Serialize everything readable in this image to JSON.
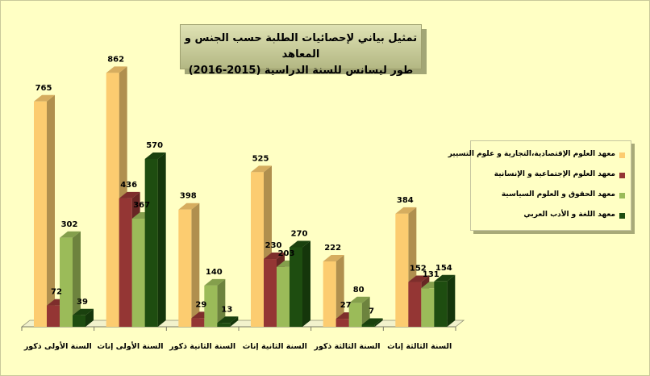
{
  "chart_data": {
    "type": "bar",
    "title": "تمثيل بياني لإحصائيات الطلبة حسب الجنس و المعاهد طور ليسانس للسنة الدراسية (2015-2016)",
    "title_lines": [
      "تمثيل بياني لإحصائيات الطلبة حسب الجنس و المعاهد",
      "طور ليسانس للسنة الدراسية (2015-2016)"
    ],
    "categories": [
      "السنة الأولى ذكور",
      "السنة الأولى إناث",
      "السنة الثانية ذكور",
      "السنة الثانية إناث",
      "السنة الثالثة ذكور",
      "السنة الثالثة إناث"
    ],
    "series": [
      {
        "name": "معهد العلوم الإقتصادية،التجارية و علوم التسيير",
        "values": [
          765,
          862,
          398,
          525,
          222,
          384
        ],
        "color": "#fccc70"
      },
      {
        "name": "معهد العلوم الإجتماعية و الإنسانية",
        "values": [
          72,
          436,
          29,
          230,
          27,
          152
        ],
        "color": "#943634"
      },
      {
        "name": "معهد الحقوق و العلوم السياسية",
        "values": [
          302,
          367,
          140,
          203,
          80,
          131
        ],
        "color": "#9bbb59"
      },
      {
        "name": "معهد اللغة و الأدب العربي",
        "values": [
          39,
          570,
          13,
          270,
          7,
          154
        ],
        "color": "#1e4d10"
      }
    ],
    "ylim": [
      0,
      880
    ],
    "grid": false,
    "legend_position": "right",
    "data_labels": true
  }
}
